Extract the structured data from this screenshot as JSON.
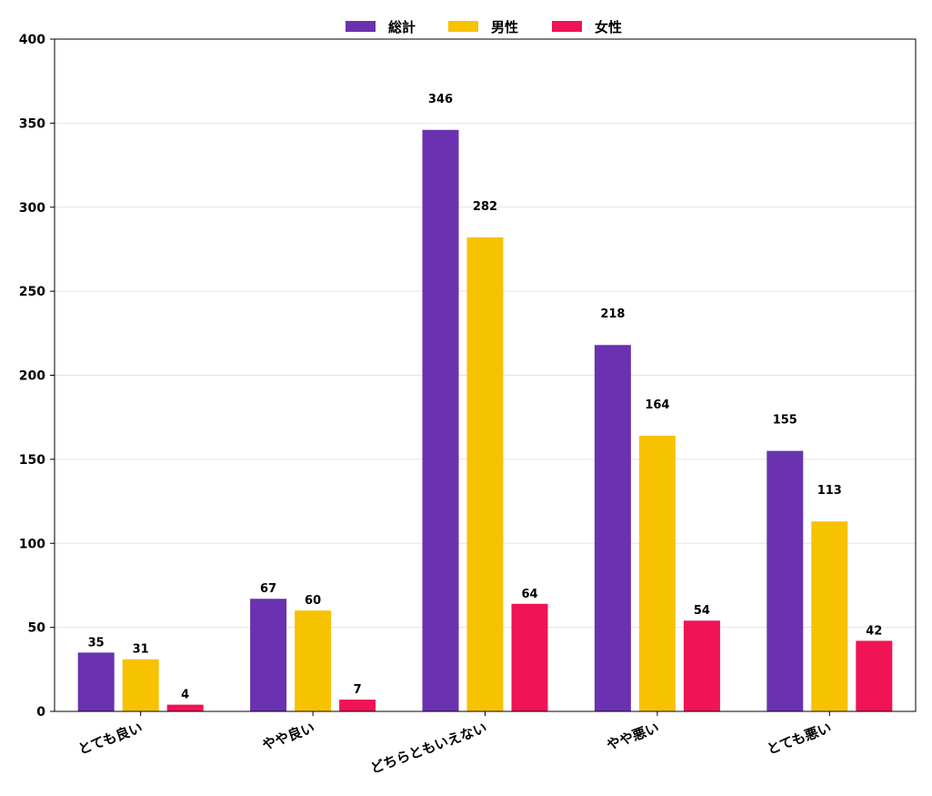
{
  "chart_data": {
    "type": "bar",
    "categories": [
      "とても良い",
      "やや良い",
      "どちらともいえない",
      "やや悪い",
      "とても悪い"
    ],
    "series": [
      {
        "name": "総計",
        "values": [
          35,
          67,
          346,
          218,
          155
        ],
        "color": "#6a32b0"
      },
      {
        "name": "男性",
        "values": [
          31,
          60,
          282,
          164,
          113
        ],
        "color": "#f7c200"
      },
      {
        "name": "女性",
        "values": [
          4,
          7,
          64,
          54,
          42
        ],
        "color": "#f01356"
      }
    ],
    "title": "",
    "xlabel": "",
    "ylabel": "",
    "ylim": [
      0,
      400
    ],
    "yticks": [
      0,
      50,
      100,
      150,
      200,
      250,
      300,
      350,
      400
    ],
    "grid": "horizontal",
    "legend": "top-center"
  }
}
